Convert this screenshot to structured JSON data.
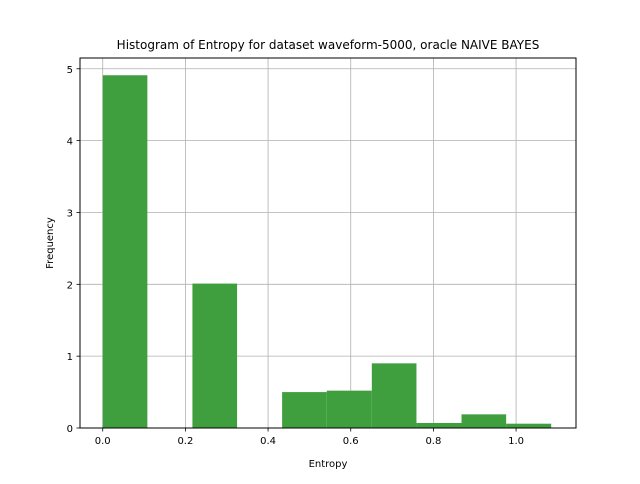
{
  "chart_data": {
    "type": "bar",
    "title": "Histogram of Entropy for dataset waveform-5000, oracle NAIVE BAYES",
    "xlabel": "Entropy",
    "ylabel": "Frequency",
    "xlim": [
      -0.055,
      1.145
    ],
    "ylim": [
      0,
      5.15
    ],
    "xticks": [
      0.0,
      0.2,
      0.4,
      0.6,
      0.8,
      1.0
    ],
    "xtick_labels": [
      "0.0",
      "0.2",
      "0.4",
      "0.6",
      "0.8",
      "1.0"
    ],
    "yticks": [
      0,
      1,
      2,
      3,
      4,
      5
    ],
    "ytick_labels": [
      "0",
      "1",
      "2",
      "3",
      "4",
      "5"
    ],
    "grid": true,
    "bar_color": "#3f9f3f",
    "bins": [
      {
        "x0": 0.0,
        "x1": 0.108,
        "value": 4.91
      },
      {
        "x0": 0.108,
        "x1": 0.217,
        "value": 0.0
      },
      {
        "x0": 0.217,
        "x1": 0.325,
        "value": 2.01
      },
      {
        "x0": 0.325,
        "x1": 0.434,
        "value": 0.0
      },
      {
        "x0": 0.434,
        "x1": 0.542,
        "value": 0.5
      },
      {
        "x0": 0.542,
        "x1": 0.651,
        "value": 0.52
      },
      {
        "x0": 0.651,
        "x1": 0.759,
        "value": 0.9
      },
      {
        "x0": 0.759,
        "x1": 0.868,
        "value": 0.07
      },
      {
        "x0": 0.868,
        "x1": 0.976,
        "value": 0.19
      },
      {
        "x0": 0.976,
        "x1": 1.085,
        "value": 0.06
      }
    ]
  }
}
